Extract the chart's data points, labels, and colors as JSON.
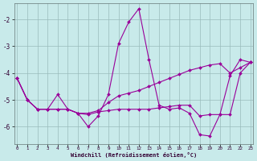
{
  "background_color": "#c8eaea",
  "grid_color": "#99bbbb",
  "line_color": "#990099",
  "xlim_min": -0.3,
  "xlim_max": 23.3,
  "ylim_min": -6.65,
  "ylim_max": -1.4,
  "yticks": [
    -6,
    -5,
    -4,
    -3,
    -2
  ],
  "xticks": [
    0,
    1,
    2,
    3,
    4,
    5,
    6,
    7,
    8,
    9,
    10,
    11,
    12,
    13,
    14,
    15,
    16,
    17,
    18,
    19,
    20,
    21,
    22,
    23
  ],
  "xlabel": "Windchill (Refroidissement éolien,°C)",
  "line1_y": [
    -4.2,
    -5.0,
    -5.35,
    -5.35,
    -4.8,
    -5.35,
    -5.5,
    -6.0,
    -5.6,
    -4.8,
    -2.9,
    -2.1,
    -1.6,
    -3.5,
    -5.2,
    -5.35,
    -5.3,
    -5.5,
    -6.3,
    -6.35,
    -5.55,
    -4.1,
    -3.5,
    -3.6
  ],
  "line2_y": [
    -4.2,
    -5.0,
    -5.35,
    -5.35,
    -5.35,
    -5.35,
    -5.5,
    -5.55,
    -5.45,
    -5.4,
    -5.35,
    -5.35,
    -5.35,
    -5.35,
    -5.3,
    -5.25,
    -5.2,
    -5.2,
    -5.6,
    -5.55,
    -5.55,
    -5.55,
    -4.0,
    -3.6
  ],
  "line3_y": [
    -4.2,
    -5.0,
    -5.35,
    -5.35,
    -5.35,
    -5.35,
    -5.5,
    -5.5,
    -5.4,
    -5.1,
    -4.85,
    -4.75,
    -4.65,
    -4.5,
    -4.35,
    -4.2,
    -4.05,
    -3.9,
    -3.8,
    -3.7,
    -3.65,
    -4.0,
    -3.8,
    -3.6
  ]
}
